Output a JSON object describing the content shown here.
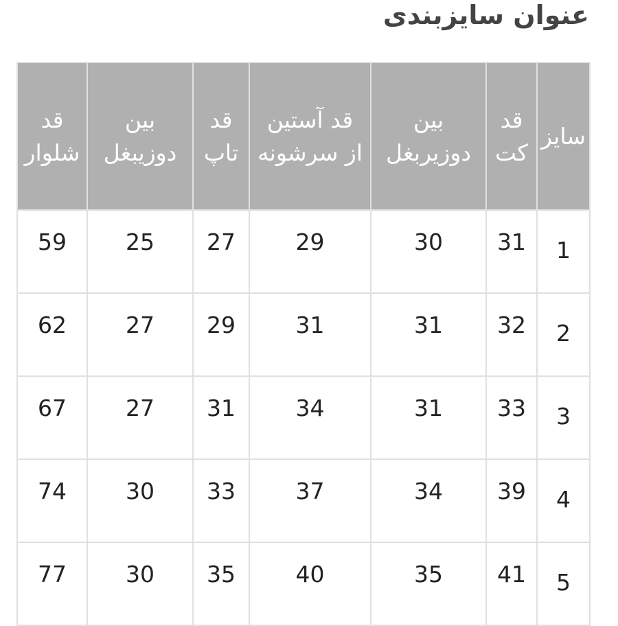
{
  "title": "عنوان سایزبندی",
  "columns": [
    {
      "line1": "سایز",
      "line2": ""
    },
    {
      "line1": "قد",
      "line2": "کت"
    },
    {
      "line1": "بین",
      "line2": "دوزیربغل"
    },
    {
      "line1": "قد آستین",
      "line2": "از سرشونه"
    },
    {
      "line1": "قد",
      "line2": "تاپ"
    },
    {
      "line1": "بین",
      "line2": "دوزیبغل"
    },
    {
      "line1": "قد",
      "line2": "شلوار"
    }
  ],
  "rows": [
    [
      "1",
      "31",
      "30",
      "29",
      "27",
      "25",
      "59"
    ],
    [
      "2",
      "32",
      "31",
      "31",
      "29",
      "27",
      "62"
    ],
    [
      "3",
      "33",
      "31",
      "34",
      "31",
      "27",
      "67"
    ],
    [
      "4",
      "39",
      "34",
      "37",
      "33",
      "30",
      "74"
    ],
    [
      "5",
      "41",
      "35",
      "40",
      "35",
      "30",
      "77"
    ]
  ],
  "colors": {
    "header_bg": "#b0b0b0",
    "header_text": "#ffffff",
    "border": "#e0e0e0"
  }
}
